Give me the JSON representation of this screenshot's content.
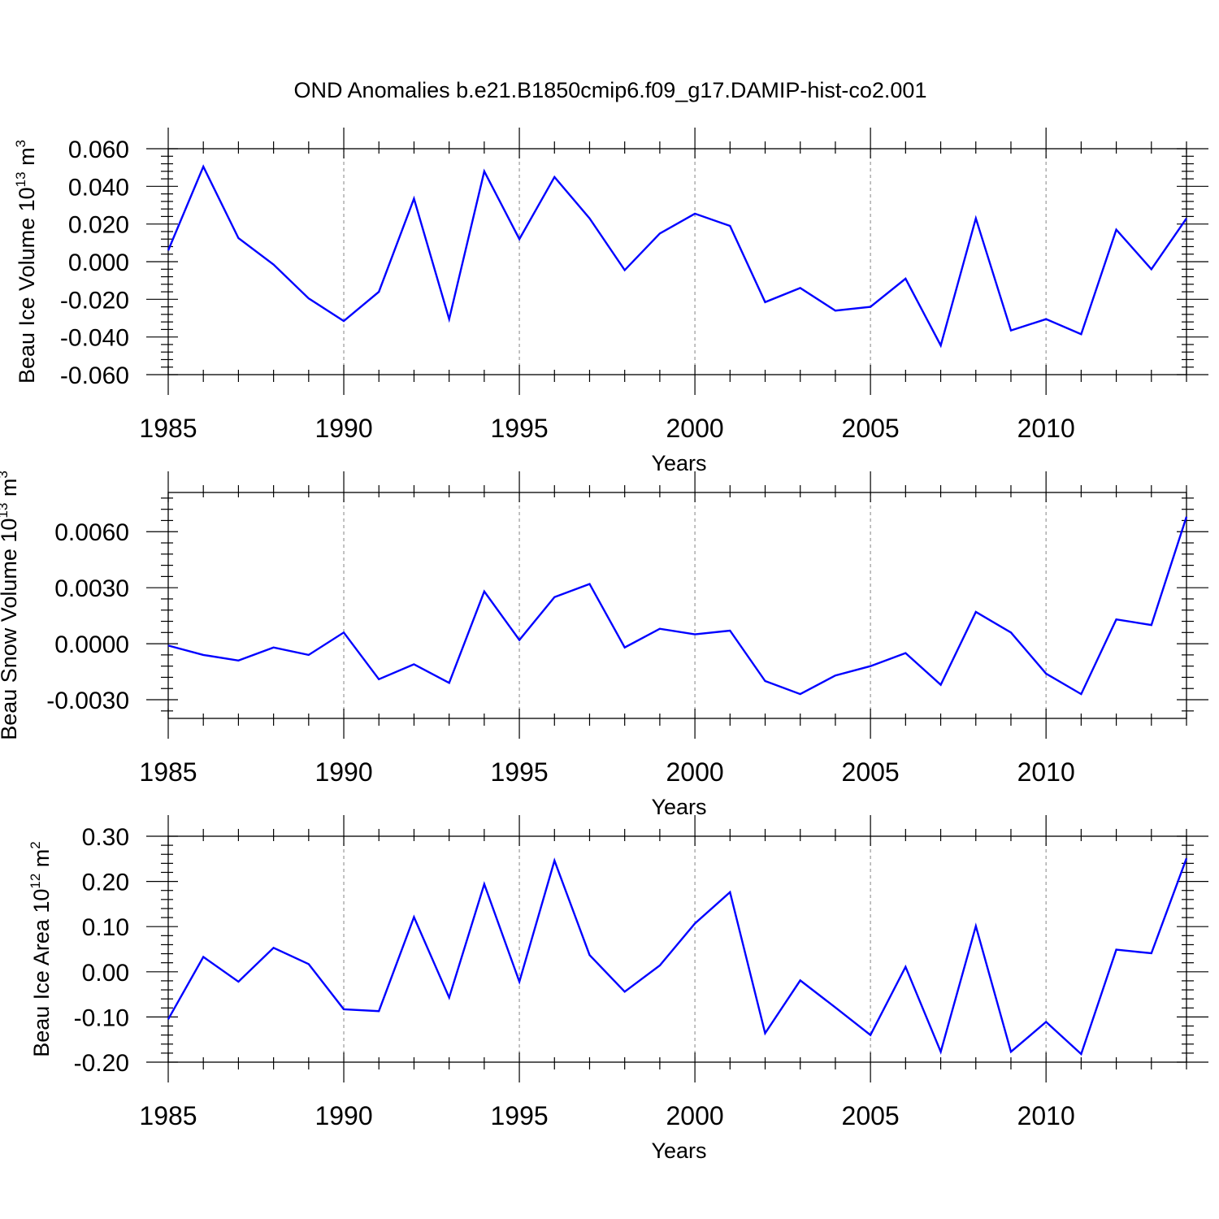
{
  "title": "OND Anomalies b.e21.B1850cmip6.f09_g17.DAMIP-hist-co2.001",
  "colors": {
    "line": "#0000ff",
    "grid": "#999999",
    "axis": "#000000"
  },
  "chart_data": [
    {
      "type": "line",
      "ylabel": {
        "text": "Beau Ice Volume 10",
        "sup": "13",
        "unit": " m",
        "unit_sup": "3"
      },
      "xlabel": "Years",
      "xlim": [
        1985,
        2014
      ],
      "ylim": [
        -0.06,
        0.06
      ],
      "x_ticks": [
        "1985",
        "1990",
        "1995",
        "2000",
        "2005",
        "2010"
      ],
      "y_ticks": [
        "-0.060",
        "-0.040",
        "-0.020",
        "0.000",
        "0.020",
        "0.040",
        "0.060"
      ],
      "grid": "vertical dashed at major x ticks",
      "x": [
        1985,
        1986,
        1987,
        1988,
        1989,
        1990,
        1991,
        1992,
        1993,
        1994,
        1995,
        1996,
        1997,
        1998,
        1999,
        2000,
        2001,
        2002,
        2003,
        2004,
        2005,
        2006,
        2007,
        2008,
        2009,
        2010,
        2011,
        2012,
        2013,
        2014
      ],
      "values": [
        0.006,
        0.0505,
        0.0125,
        -0.0015,
        -0.0195,
        -0.0315,
        -0.016,
        0.0335,
        -0.0305,
        0.048,
        0.012,
        0.045,
        0.023,
        -0.0045,
        0.015,
        0.0255,
        0.019,
        -0.0215,
        -0.014,
        -0.026,
        -0.024,
        -0.009,
        -0.0445,
        0.023,
        -0.0365,
        -0.0305,
        -0.0385,
        0.017,
        -0.004,
        0.023
      ]
    },
    {
      "type": "line",
      "ylabel": {
        "text": "Beau Snow Volume 10",
        "sup": "13",
        "unit": " m",
        "unit_sup": "3"
      },
      "xlabel": "Years",
      "xlim": [
        1985,
        2014
      ],
      "ylim": [
        -0.004,
        0.0081
      ],
      "x_ticks": [
        "1985",
        "1990",
        "1995",
        "2000",
        "2005",
        "2010"
      ],
      "y_ticks": [
        "-0.0030",
        "0.0000",
        "0.0030",
        "0.0060"
      ],
      "grid": "vertical dashed at major x ticks",
      "x": [
        1985,
        1986,
        1987,
        1988,
        1989,
        1990,
        1991,
        1992,
        1993,
        1994,
        1995,
        1996,
        1997,
        1998,
        1999,
        2000,
        2001,
        2002,
        2003,
        2004,
        2005,
        2006,
        2007,
        2008,
        2009,
        2010,
        2011,
        2012,
        2013,
        2014
      ],
      "values": [
        -0.0001,
        -0.0006,
        -0.0009,
        -0.0002,
        -0.0006,
        0.0006,
        -0.0019,
        -0.0011,
        -0.0021,
        0.0028,
        0.0002,
        0.0025,
        0.0032,
        -0.0002,
        0.0008,
        0.0005,
        0.0007,
        -0.002,
        -0.0027,
        -0.0017,
        -0.0012,
        -0.0005,
        -0.0022,
        0.0017,
        0.0006,
        -0.0016,
        -0.0027,
        0.0013,
        0.001,
        0.0068
      ]
    },
    {
      "type": "line",
      "ylabel": {
        "text": "Beau Ice Area 10",
        "sup": "12",
        "unit": " m",
        "unit_sup": "2"
      },
      "xlabel": "Years",
      "xlim": [
        1985,
        2014
      ],
      "ylim": [
        -0.2,
        0.3
      ],
      "x_ticks": [
        "1985",
        "1990",
        "1995",
        "2000",
        "2005",
        "2010"
      ],
      "y_ticks": [
        "-0.20",
        "-0.10",
        "0.00",
        "0.10",
        "0.20",
        "0.30"
      ],
      "grid": "vertical dashed at major x ticks",
      "x": [
        1985,
        1986,
        1987,
        1988,
        1989,
        1990,
        1991,
        1992,
        1993,
        1994,
        1995,
        1996,
        1997,
        1998,
        1999,
        2000,
        2001,
        2002,
        2003,
        2004,
        2005,
        2006,
        2007,
        2008,
        2009,
        2010,
        2011,
        2012,
        2013,
        2014
      ],
      "values": [
        -0.105,
        0.033,
        -0.022,
        0.053,
        0.017,
        -0.083,
        -0.087,
        0.121,
        -0.057,
        0.194,
        -0.022,
        0.246,
        0.037,
        -0.044,
        0.014,
        0.107,
        0.176,
        -0.136,
        -0.019,
        -0.079,
        -0.14,
        0.011,
        -0.177,
        0.101,
        -0.177,
        -0.111,
        -0.182,
        0.049,
        0.041,
        0.251
      ]
    }
  ]
}
